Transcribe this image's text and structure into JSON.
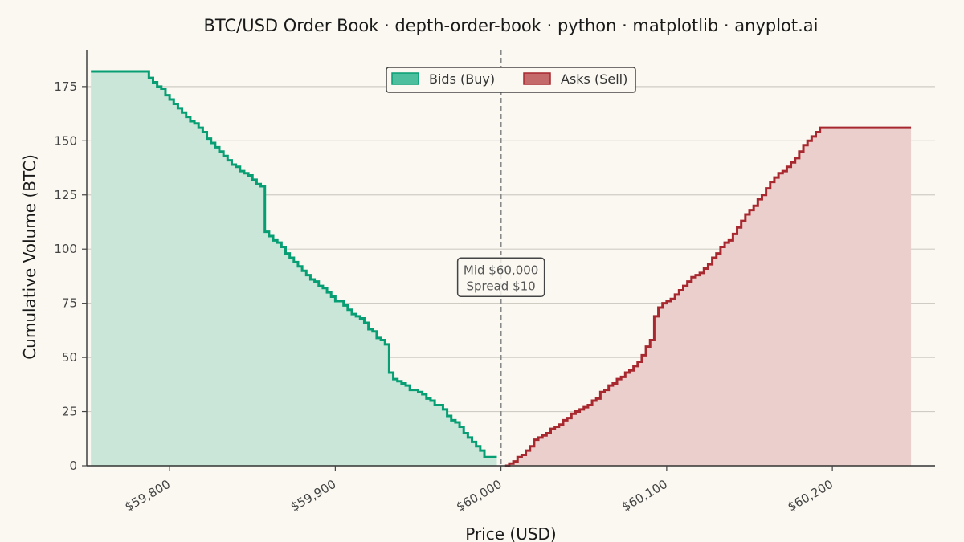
{
  "chart_data": {
    "type": "area",
    "title": "BTC/USD Order Book · depth-order-book · python · matplotlib · anyplot.ai",
    "xlabel": "Price (USD)",
    "ylabel": "Cumulative Volume (BTC)",
    "xlim": [
      59750,
      60262
    ],
    "ylim": [
      0,
      192
    ],
    "x_ticks": [
      59800,
      59900,
      60000,
      60100,
      60200
    ],
    "x_tick_labels": [
      "$59,800",
      "$59,900",
      "$60,000",
      "$60,100",
      "$60,200"
    ],
    "y_ticks": [
      0,
      25,
      50,
      75,
      100,
      125,
      150,
      175
    ],
    "y_tick_labels": [
      "0",
      "25",
      "50",
      "75",
      "100",
      "125",
      "150",
      "175"
    ],
    "grid": "horizontal",
    "legend": "top-center",
    "colors": {
      "bids": "#079E73",
      "bids_fill": "#C9E6D8",
      "asks": "#A8282F",
      "asks_fill": "#EBCFCC",
      "background": "#FAF8F1"
    },
    "series": [
      {
        "name": "Bids (Buy)",
        "x": [
          59997.5,
          59995,
          59992.5,
          59990,
          59987.5,
          59985,
          59982.5,
          59980,
          59977.5,
          59975,
          59972.5,
          59970,
          59967.5,
          59965,
          59962.5,
          59960,
          59957.5,
          59955,
          59952.5,
          59950,
          59947.5,
          59945,
          59942.5,
          59940,
          59937.5,
          59935,
          59932.5,
          59930,
          59927.5,
          59925,
          59922.5,
          59920,
          59917.5,
          59915,
          59912.5,
          59910,
          59907.5,
          59905,
          59902.5,
          59900,
          59897.5,
          59895,
          59892.5,
          59890,
          59887.5,
          59885,
          59882.5,
          59880,
          59877.5,
          59875,
          59872.5,
          59870,
          59867.5,
          59865,
          59862.5,
          59860,
          59857.5,
          59855,
          59852.5,
          59850,
          59847.5,
          59845,
          59842.5,
          59840,
          59837.5,
          59835,
          59832.5,
          59830,
          59827.5,
          59825,
          59822.5,
          59820,
          59817.5,
          59815,
          59812.5,
          59810,
          59807.5,
          59805,
          59802.5,
          59800,
          59797.5,
          59795,
          59792.5,
          59790,
          59787.5,
          59785,
          59782.5,
          59780,
          59777.5,
          59775,
          59772.5,
          59770,
          59767.5,
          59765,
          59762.5,
          59760,
          59757.5,
          59755,
          59752.5
        ],
        "values": [
          4,
          4,
          4,
          7,
          9,
          11,
          13,
          15,
          18,
          20,
          21,
          23,
          26,
          28,
          28,
          30,
          31,
          33,
          34,
          35,
          35,
          37,
          38,
          39,
          40,
          43,
          56,
          58,
          59,
          62,
          63,
          66,
          68,
          69,
          70,
          72,
          74,
          76,
          76,
          78,
          80,
          82,
          83,
          85,
          86,
          88,
          90,
          92,
          94,
          96,
          98,
          101,
          103,
          104,
          106,
          108,
          129,
          130,
          132,
          134,
          135,
          136,
          138,
          139,
          141,
          143,
          145,
          147,
          149,
          151,
          154,
          156,
          158,
          159,
          161,
          163,
          165,
          167,
          169,
          171,
          174,
          175,
          177,
          179,
          182,
          182,
          182,
          182,
          182,
          182,
          182,
          182,
          182,
          182,
          182,
          182,
          182,
          182,
          182
        ]
      },
      {
        "name": "Asks (Sell)",
        "x": [
          60002.5,
          60005,
          60007.5,
          60010,
          60012.5,
          60015,
          60017.5,
          60020,
          60022.5,
          60025,
          60027.5,
          60030,
          60032.5,
          60035,
          60037.5,
          60040,
          60042.5,
          60045,
          60047.5,
          60050,
          60052.5,
          60055,
          60057.5,
          60060,
          60062.5,
          60065,
          60067.5,
          60070,
          60072.5,
          60075,
          60077.5,
          60080,
          60082.5,
          60085,
          60087.5,
          60090,
          60092.5,
          60095,
          60097.5,
          60100,
          60102.5,
          60105,
          60107.5,
          60110,
          60112.5,
          60115,
          60117.5,
          60120,
          60122.5,
          60125,
          60127.5,
          60130,
          60132.5,
          60135,
          60137.5,
          60140,
          60142.5,
          60145,
          60147.5,
          60150,
          60152.5,
          60155,
          60157.5,
          60160,
          60162.5,
          60165,
          60167.5,
          60170,
          60172.5,
          60175,
          60177.5,
          60180,
          60182.5,
          60185,
          60187.5,
          60190,
          60192.5,
          60195,
          60197.5,
          60200,
          60202.5,
          60205,
          60207.5,
          60210,
          60212.5,
          60215,
          60217.5,
          60220,
          60222.5,
          60225,
          60227.5,
          60230,
          60232.5,
          60235,
          60237.5,
          60240,
          60242.5,
          60245,
          60247.5
        ],
        "values": [
          0,
          1,
          2,
          4,
          5,
          7,
          9,
          12,
          13,
          14,
          15,
          17,
          18,
          19,
          21,
          22,
          24,
          25,
          26,
          27,
          28,
          30,
          31,
          34,
          35,
          37,
          38,
          40,
          41,
          43,
          44,
          46,
          48,
          51,
          55,
          58,
          69,
          73,
          75,
          76,
          77,
          79,
          81,
          83,
          85,
          87,
          88,
          89,
          91,
          93,
          96,
          98,
          101,
          103,
          104,
          107,
          110,
          113,
          116,
          118,
          120,
          123,
          125,
          128,
          131,
          133,
          135,
          136,
          138,
          140,
          142,
          145,
          148,
          150,
          152,
          154,
          156,
          156,
          156,
          156,
          156,
          156,
          156,
          156,
          156,
          156,
          156,
          156,
          156,
          156,
          156,
          156,
          156,
          156,
          156,
          156,
          156,
          156,
          156
        ]
      }
    ],
    "midline": {
      "x": 60000
    },
    "annotation": {
      "line1": "Mid $60,000",
      "line2": "Spread $10",
      "x": 60000,
      "y": 87
    }
  }
}
